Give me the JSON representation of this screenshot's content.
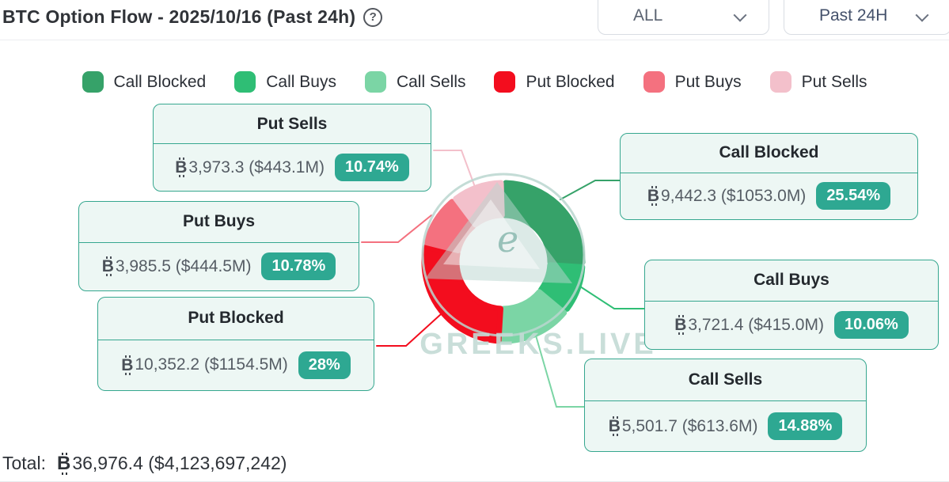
{
  "header": {
    "title": "BTC Option Flow - 2025/10/16 (Past 24h)",
    "help_icon": "?",
    "filter_all": "ALL",
    "filter_time": "Past 24H"
  },
  "chart_data": {
    "type": "pie",
    "subtype": "donut",
    "title": "BTC Option Flow - 2025/10/16 (Past 24h)",
    "legend_position": "top",
    "start_angle": "12-o'clock, clockwise",
    "currency_symbol": "₿",
    "slices": [
      {
        "name": "Call Blocked",
        "btc": "9,442.3",
        "usd": "$1053.0M",
        "value": "9,442.3 ($1053.0M)",
        "pct": 25.54,
        "pct_label": "25.54%",
        "color": "#36A269"
      },
      {
        "name": "Call Buys",
        "btc": "3,721.4",
        "usd": "$415.0M",
        "value": "3,721.4 ($415.0M)",
        "pct": 10.06,
        "pct_label": "10.06%",
        "color": "#2FBE75"
      },
      {
        "name": "Call Sells",
        "btc": "5,501.7",
        "usd": "$613.6M",
        "value": "5,501.7 ($613.6M)",
        "pct": 14.88,
        "pct_label": "14.88%",
        "color": "#7BD5A5"
      },
      {
        "name": "Put Blocked",
        "btc": "10,352.2",
        "usd": "$1154.5M",
        "value": "10,352.2 ($1154.5M)",
        "pct": 28,
        "pct_label": "28%",
        "color": "#F30D1E"
      },
      {
        "name": "Put Buys",
        "btc": "3,985.5",
        "usd": "$444.5M",
        "value": "3,985.5 ($444.5M)",
        "pct": 10.78,
        "pct_label": "10.78%",
        "color": "#F4717F"
      },
      {
        "name": "Put Sells",
        "btc": "3,973.3",
        "usd": "$443.1M",
        "value": "3,973.3 ($443.1M)",
        "pct": 10.74,
        "pct_label": "10.74%",
        "color": "#F3C0CB"
      }
    ],
    "total": {
      "label": "Total:",
      "value": "36,976.4 ($4,123,697,242)"
    },
    "watermark": {
      "brand": "GREEKS.LIVE",
      "logo_letter": "e"
    },
    "theme": {
      "box_border": "#36A78F",
      "box_bg": "#EDF7F4",
      "badge_bg": "#2EA892"
    }
  }
}
